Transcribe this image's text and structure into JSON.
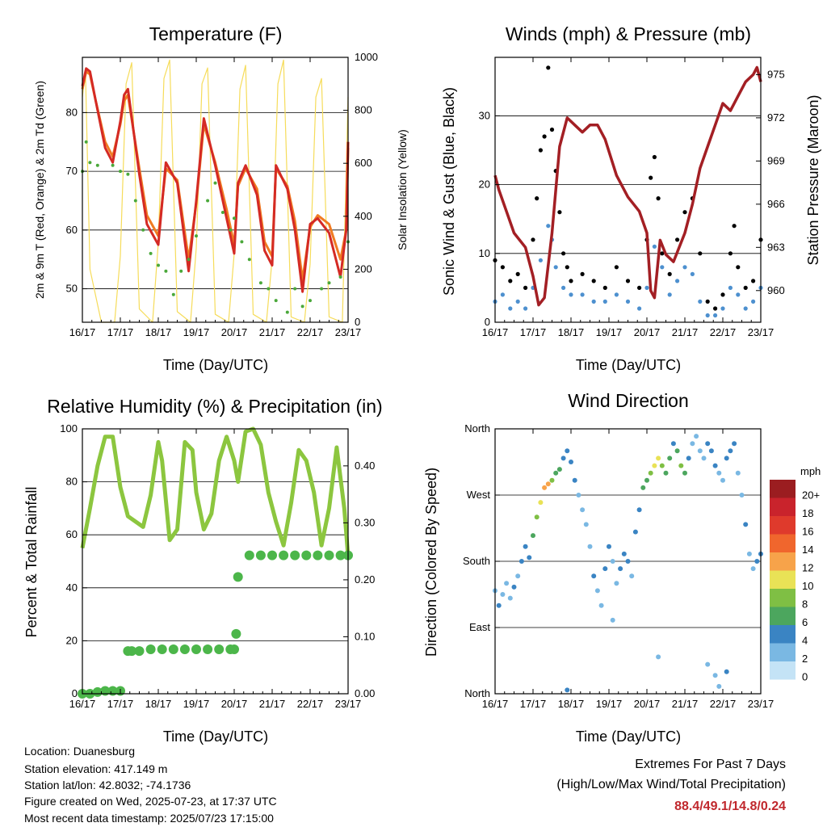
{
  "chart_data": [
    {
      "type": "line",
      "title": "Temperature (F)",
      "xlabel": "Time (Day/UTC)",
      "ylabel": "2m & 9m T (Red, Orange) & 2m Td (Green)",
      "ylabel_right": "Solar Insolation (Yellow)",
      "x_ticks": [
        "16/17",
        "17/17",
        "18/17",
        "19/17",
        "20/17",
        "21/17",
        "22/17",
        "23/17"
      ],
      "ylim": [
        44.3,
        89.4
      ],
      "yticks": [
        50,
        60,
        70,
        80
      ],
      "y2lim": [
        0,
        1000
      ],
      "y2ticks": [
        0,
        200,
        400,
        600,
        800,
        1000
      ],
      "grid": true,
      "series": [
        {
          "color": "#d42a24",
          "axis": "left",
          "style": "line",
          "x": [
            0.0,
            0.1,
            0.2,
            0.35,
            0.6,
            0.8,
            1.0,
            1.1,
            1.2,
            1.5,
            1.7,
            2.0,
            2.2,
            2.5,
            2.8,
            3.0,
            3.2,
            3.5,
            3.8,
            4.0,
            4.1,
            4.3,
            4.6,
            4.8,
            5.0,
            5.1,
            5.4,
            5.6,
            5.8,
            6.0,
            6.2,
            6.5,
            6.8,
            6.95,
            7.0
          ],
          "values": [
            84.5,
            87.5,
            87.0,
            82.0,
            74.0,
            71.5,
            78.5,
            83.0,
            84.0,
            69.5,
            61.0,
            57.5,
            71.5,
            68.0,
            53.0,
            65.0,
            79.0,
            71.0,
            62.0,
            56.0,
            68.0,
            71.0,
            66.0,
            56.5,
            54.0,
            71.0,
            67.0,
            60.0,
            49.5,
            61.0,
            62.0,
            59.5,
            52.0,
            60.0,
            75.0
          ]
        },
        {
          "color": "#f07b22",
          "axis": "left",
          "style": "line",
          "x": [
            0.0,
            0.1,
            0.2,
            0.35,
            0.6,
            0.8,
            1.0,
            1.1,
            1.2,
            1.5,
            1.7,
            2.0,
            2.2,
            2.5,
            2.8,
            3.0,
            3.2,
            3.5,
            3.8,
            4.0,
            4.1,
            4.3,
            4.6,
            4.8,
            5.0,
            5.1,
            5.4,
            5.6,
            5.8,
            6.0,
            6.2,
            6.5,
            6.8,
            6.95,
            7.0
          ],
          "values": [
            84.0,
            87.0,
            86.5,
            82.0,
            75.0,
            72.5,
            78.0,
            82.0,
            83.0,
            70.5,
            62.5,
            59.0,
            70.5,
            68.5,
            55.0,
            64.5,
            78.0,
            71.5,
            63.5,
            57.5,
            67.5,
            70.5,
            67.0,
            58.0,
            55.5,
            70.5,
            67.5,
            61.5,
            51.5,
            60.5,
            62.5,
            61.0,
            55.0,
            60.0,
            74.0
          ]
        },
        {
          "color": "#4aa83a",
          "axis": "left",
          "style": "dots",
          "x": [
            0.0,
            0.1,
            0.2,
            0.4,
            0.8,
            1.0,
            1.2,
            1.4,
            1.6,
            1.8,
            2.0,
            2.2,
            2.4,
            2.6,
            2.8,
            3.0,
            3.3,
            3.5,
            3.7,
            3.9,
            4.0,
            4.2,
            4.4,
            4.7,
            4.9,
            5.1,
            5.4,
            5.6,
            5.8,
            6.0,
            6.3,
            6.5,
            6.8,
            7.0
          ],
          "values": [
            70.0,
            75.0,
            71.5,
            71.0,
            71.0,
            70.0,
            69.5,
            65.0,
            60.0,
            56.0,
            54.0,
            53.0,
            49.0,
            53.0,
            55.0,
            59.0,
            65.0,
            68.0,
            63.0,
            60.0,
            62.0,
            58.0,
            55.0,
            51.0,
            50.0,
            48.0,
            46.0,
            50.0,
            47.0,
            48.0,
            50.0,
            51.0,
            52.0,
            58.0
          ]
        },
        {
          "color": "#f6dc5a",
          "axis": "right",
          "style": "line",
          "x": [
            0.0,
            0.08,
            0.2,
            0.5,
            0.85,
            1.0,
            1.15,
            1.3,
            1.5,
            1.85,
            2.0,
            2.15,
            2.3,
            2.5,
            2.85,
            3.0,
            3.15,
            3.3,
            3.5,
            3.85,
            4.0,
            4.15,
            4.3,
            4.5,
            4.85,
            5.0,
            5.15,
            5.3,
            5.5,
            5.85,
            6.0,
            6.15,
            6.3,
            6.5,
            6.85,
            7.0
          ],
          "values": [
            850,
            950,
            200,
            0,
            0,
            250,
            900,
            980,
            50,
            0,
            300,
            920,
            990,
            40,
            0,
            280,
            900,
            960,
            30,
            0,
            260,
            880,
            970,
            30,
            0,
            240,
            900,
            990,
            20,
            0,
            220,
            850,
            920,
            20,
            0,
            850
          ]
        }
      ]
    },
    {
      "type": "scatter",
      "title": "Winds (mph) & Pressure (mb)",
      "xlabel": "Time (Day/UTC)",
      "ylabel": "Sonic Wind & Gust (Blue, Black)",
      "ylabel_right": "Station Pressure (Maroon)",
      "x_ticks": [
        "16/17",
        "17/17",
        "18/17",
        "19/17",
        "20/17",
        "21/17",
        "22/17",
        "23/17"
      ],
      "ylim": [
        0,
        38.5
      ],
      "yticks": [
        0,
        10,
        20,
        30
      ],
      "y2lim": [
        957.8,
        976.2
      ],
      "y2ticks": [
        960,
        963,
        966,
        969,
        972,
        975
      ],
      "grid": true,
      "series": [
        {
          "color": "#000000",
          "axis": "left",
          "style": "dots",
          "x": [
            0.0,
            0.2,
            0.4,
            0.6,
            0.8,
            1.0,
            1.1,
            1.2,
            1.3,
            1.4,
            1.5,
            1.6,
            1.7,
            1.8,
            1.9,
            2.0,
            2.3,
            2.6,
            2.9,
            3.2,
            3.5,
            3.8,
            4.0,
            4.1,
            4.2,
            4.3,
            4.4,
            4.6,
            4.8,
            5.0,
            5.2,
            5.4,
            5.6,
            5.8,
            6.0,
            6.2,
            6.3,
            6.4,
            6.6,
            6.8,
            7.0
          ],
          "values": [
            9,
            8,
            6,
            7,
            5,
            12,
            18,
            25,
            27,
            37,
            28,
            22,
            16,
            10,
            8,
            6,
            7,
            6,
            5,
            8,
            6,
            5,
            12,
            21,
            24,
            18,
            10,
            7,
            12,
            16,
            18,
            10,
            3,
            2,
            4,
            10,
            14,
            8,
            5,
            6,
            12
          ]
        },
        {
          "color": "#4d90cf",
          "axis": "left",
          "style": "dots",
          "x": [
            0.0,
            0.2,
            0.4,
            0.6,
            0.8,
            1.0,
            1.2,
            1.4,
            1.5,
            1.6,
            1.8,
            2.0,
            2.3,
            2.6,
            2.9,
            3.2,
            3.5,
            3.8,
            4.0,
            4.2,
            4.4,
            4.6,
            4.8,
            5.0,
            5.2,
            5.4,
            5.6,
            5.8,
            6.0,
            6.2,
            6.4,
            6.6,
            6.8,
            7.0
          ],
          "values": [
            3,
            4,
            2,
            3,
            2,
            5,
            9,
            14,
            12,
            8,
            5,
            4,
            4,
            3,
            3,
            4,
            3,
            2,
            5,
            11,
            8,
            4,
            6,
            8,
            7,
            3,
            1,
            1,
            2,
            5,
            4,
            2,
            3,
            5
          ]
        },
        {
          "color": "#a31f24",
          "axis": "right",
          "style": "line",
          "x": [
            0.0,
            0.1,
            0.3,
            0.5,
            0.8,
            1.0,
            1.15,
            1.3,
            1.5,
            1.7,
            1.9,
            2.1,
            2.3,
            2.5,
            2.7,
            2.9,
            3.2,
            3.5,
            3.8,
            4.0,
            4.1,
            4.2,
            4.35,
            4.5,
            4.7,
            5.0,
            5.2,
            5.4,
            5.6,
            5.8,
            6.0,
            6.2,
            6.4,
            6.6,
            6.8,
            6.9,
            7.0
          ],
          "values": [
            968.0,
            967.0,
            965.5,
            964.0,
            963.0,
            961.0,
            959.0,
            959.5,
            964.0,
            970.0,
            972.0,
            971.5,
            971.0,
            971.5,
            971.5,
            970.5,
            968.0,
            966.5,
            965.5,
            964.0,
            960.0,
            959.5,
            963.5,
            962.5,
            962.0,
            964.0,
            966.0,
            968.5,
            970.0,
            971.5,
            973.0,
            972.5,
            973.5,
            974.5,
            975.0,
            975.5,
            974.5
          ]
        }
      ]
    },
    {
      "type": "line",
      "title": "Relative Humidity (%) & Precipitation (in)",
      "xlabel": "Time (Day/UTC)",
      "ylabel": "Percent & Total Rainfall",
      "x_ticks": [
        "16/17",
        "17/17",
        "18/17",
        "19/17",
        "20/17",
        "21/17",
        "22/17",
        "23/17"
      ],
      "ylim": [
        0,
        100
      ],
      "yticks": [
        0,
        20,
        40,
        60,
        80,
        100
      ],
      "y2lim": [
        0,
        0.465
      ],
      "y2ticks": [
        "0.00",
        "0.10",
        "0.20",
        "0.30",
        "0.40"
      ],
      "grid": true,
      "series": [
        {
          "color": "#8cc63f",
          "axis": "left",
          "style": "line",
          "x": [
            0.0,
            0.2,
            0.4,
            0.6,
            0.8,
            1.0,
            1.2,
            1.4,
            1.6,
            1.8,
            2.0,
            2.1,
            2.3,
            2.5,
            2.7,
            2.9,
            3.0,
            3.2,
            3.4,
            3.6,
            3.8,
            4.0,
            4.1,
            4.3,
            4.5,
            4.7,
            4.9,
            5.1,
            5.3,
            5.5,
            5.7,
            5.9,
            6.1,
            6.3,
            6.5,
            6.7,
            6.9,
            7.0
          ],
          "values": [
            55,
            70,
            86,
            97,
            97,
            78,
            67,
            65,
            63,
            75,
            95,
            88,
            58,
            62,
            95,
            92,
            76,
            62,
            68,
            88,
            97,
            88,
            80,
            99,
            100,
            94,
            76,
            65,
            56,
            72,
            92,
            88,
            76,
            56,
            70,
            93,
            70,
            52
          ]
        },
        {
          "color": "#4cb64a",
          "axis": "right",
          "style": "dots",
          "x": [
            0.0,
            0.2,
            0.4,
            0.6,
            0.8,
            1.0,
            1.2,
            1.3,
            1.5,
            1.8,
            2.1,
            2.4,
            2.7,
            3.0,
            3.3,
            3.6,
            3.9,
            4.0,
            4.05,
            4.1,
            4.4,
            4.7,
            5.0,
            5.3,
            5.6,
            5.9,
            6.2,
            6.5,
            6.8,
            7.0
          ],
          "values": [
            0.0,
            0.0,
            0.003,
            0.005,
            0.005,
            0.005,
            0.075,
            0.075,
            0.075,
            0.078,
            0.078,
            0.078,
            0.078,
            0.078,
            0.078,
            0.078,
            0.078,
            0.078,
            0.105,
            0.205,
            0.243,
            0.243,
            0.243,
            0.243,
            0.243,
            0.243,
            0.243,
            0.243,
            0.243,
            0.243
          ]
        }
      ]
    },
    {
      "type": "scatter",
      "title": "Wind Direction",
      "xlabel": "Time (Day/UTC)",
      "ylabel": "Direction (Colored By Speed)",
      "x_ticks": [
        "16/17",
        "17/17",
        "18/17",
        "19/17",
        "20/17",
        "21/17",
        "22/17",
        "23/17"
      ],
      "y_tick_labels": [
        "North",
        "East",
        "South",
        "West",
        "North"
      ],
      "ylim": [
        0,
        360
      ],
      "grid": true,
      "colorbar": {
        "title": "mph",
        "labels": [
          "20+",
          "18",
          "16",
          "14",
          "12",
          "10",
          "8",
          "6",
          "4",
          "2",
          "0"
        ],
        "colors": [
          "#9b1d20",
          "#c9232c",
          "#df3a2c",
          "#f0662d",
          "#f7a34a",
          "#e9e256",
          "#7fbf44",
          "#4ca65e",
          "#3a84c3",
          "#7ab8e3",
          "#c4e3f6"
        ]
      },
      "points": {
        "x": [
          0.0,
          0.1,
          0.2,
          0.3,
          0.4,
          0.5,
          0.6,
          0.7,
          0.8,
          0.9,
          1.0,
          1.1,
          1.2,
          1.3,
          1.4,
          1.5,
          1.6,
          1.7,
          1.8,
          1.9,
          2.0,
          2.1,
          2.2,
          2.3,
          2.4,
          2.5,
          2.6,
          2.7,
          2.8,
          2.9,
          3.0,
          3.1,
          3.2,
          3.3,
          3.4,
          3.5,
          3.6,
          3.7,
          3.8,
          3.9,
          4.0,
          4.1,
          4.2,
          4.3,
          4.4,
          4.5,
          4.6,
          4.7,
          4.8,
          4.9,
          5.0,
          5.1,
          5.2,
          5.3,
          5.4,
          5.5,
          5.6,
          5.7,
          5.8,
          5.9,
          6.0,
          6.1,
          6.2,
          6.3,
          6.4,
          6.5,
          6.6,
          6.7,
          6.8,
          6.9,
          7.0,
          5.6,
          5.8,
          5.9,
          6.1,
          1.9,
          3.1,
          4.3
        ],
        "values": [
          140,
          120,
          135,
          150,
          130,
          145,
          160,
          180,
          200,
          185,
          215,
          240,
          260,
          280,
          285,
          290,
          300,
          305,
          320,
          330,
          315,
          290,
          270,
          250,
          230,
          200,
          160,
          140,
          120,
          170,
          200,
          180,
          150,
          170,
          190,
          180,
          160,
          220,
          250,
          280,
          290,
          300,
          310,
          320,
          310,
          300,
          320,
          340,
          330,
          310,
          300,
          320,
          340,
          350,
          330,
          320,
          340,
          330,
          310,
          300,
          290,
          320,
          330,
          340,
          300,
          270,
          230,
          190,
          170,
          180,
          190,
          40,
          25,
          10,
          30,
          5,
          100,
          50
        ],
        "speed": [
          2,
          3,
          2,
          1,
          2,
          3,
          2,
          3,
          4,
          4,
          5,
          7,
          9,
          12,
          11,
          8,
          6,
          5,
          4,
          3,
          4,
          3,
          2,
          2,
          1,
          2,
          3,
          2,
          2,
          3,
          3,
          2,
          2,
          3,
          4,
          3,
          2,
          3,
          4,
          5,
          6,
          7,
          9,
          10,
          8,
          6,
          5,
          4,
          6,
          7,
          5,
          3,
          2,
          1,
          1,
          2,
          3,
          4,
          3,
          2,
          2,
          3,
          4,
          3,
          2,
          2,
          3,
          2,
          2,
          3,
          4,
          1,
          1,
          2,
          3,
          3,
          2,
          2
        ]
      }
    }
  ],
  "info": {
    "location": "Location: Duanesburg",
    "elevation": "Station elevation: 417.149 m",
    "latlon": "Station lat/lon: 42.8032; -74.1736",
    "created": "Figure created on Wed, 2025-07-23, at 17:37 UTC",
    "recent": "Most recent data timestamp: 2025/07/23 17:15:00"
  },
  "extremes": {
    "title": "Extremes For Past 7 Days",
    "subtitle": "(High/Low/Max Wind/Total Precipitation)",
    "values": "88.4/49.1/14.8/0.24"
  }
}
